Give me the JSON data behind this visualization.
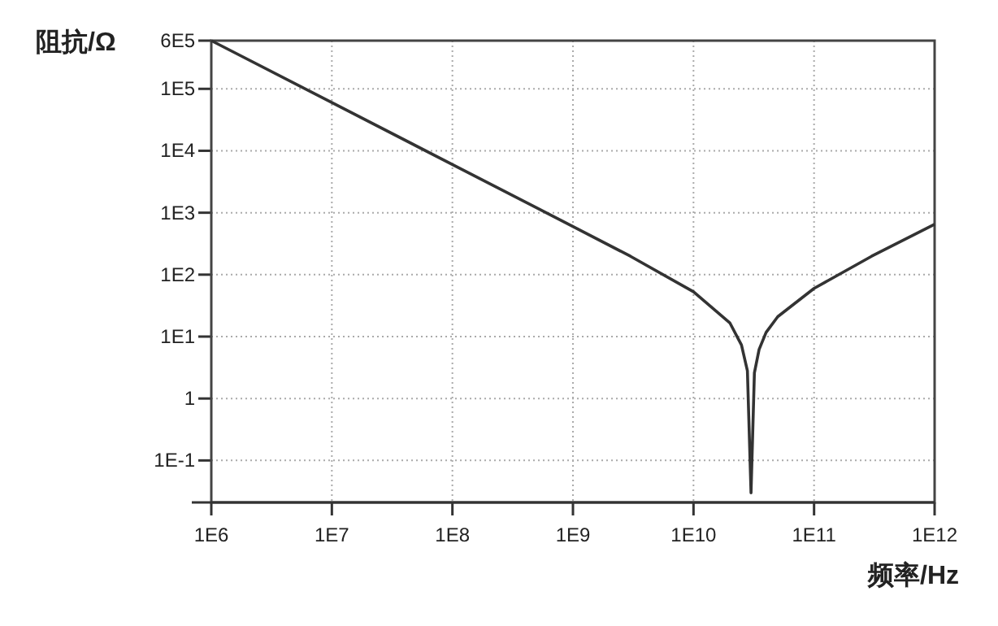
{
  "chart_data": {
    "type": "line",
    "xlabel": "频率/Hz",
    "ylabel": "阻抗/Ω",
    "log": "xy",
    "grid": true,
    "marker": "none",
    "line_style": "solid",
    "xlim": [
      1000000,
      1000000000000
    ],
    "ylim": [
      0.021,
      600000
    ],
    "xticks": [
      {
        "value": 1000000,
        "label": "1E6"
      },
      {
        "value": 10000000,
        "label": "1E7"
      },
      {
        "value": 100000000,
        "label": "1E8"
      },
      {
        "value": 1000000000,
        "label": "1E9"
      },
      {
        "value": 10000000000,
        "label": "1E10"
      },
      {
        "value": 100000000000,
        "label": "1E11"
      },
      {
        "value": 1000000000000,
        "label": "1E12"
      }
    ],
    "yticks": [
      {
        "value": 0.1,
        "label": "1E-1"
      },
      1,
      {
        "value": 10,
        "label": "1E1"
      },
      {
        "value": 100,
        "label": "1E2"
      },
      {
        "value": 1000,
        "label": "1E3"
      },
      {
        "value": 10000,
        "label": "1E4"
      },
      {
        "value": 100000,
        "label": "1E5"
      },
      {
        "value": 600000,
        "label": "6E5"
      }
    ],
    "series": [
      {
        "color": "#333333",
        "x": [
          1000000,
          10000000,
          100000000,
          1000000000,
          3000000000,
          10000000000,
          20000000000,
          25000000000,
          28000000000,
          30000000000,
          32000000000,
          35000000000,
          40000000000,
          50000000000,
          100000000000,
          300000000000,
          1000000000000
        ],
        "values": [
          600000,
          60000,
          6000,
          600,
          198,
          53,
          16.7,
          7.3,
          2.8,
          0.03,
          2.6,
          6.2,
          11.7,
          21,
          60,
          198,
          650
        ]
      }
    ]
  }
}
